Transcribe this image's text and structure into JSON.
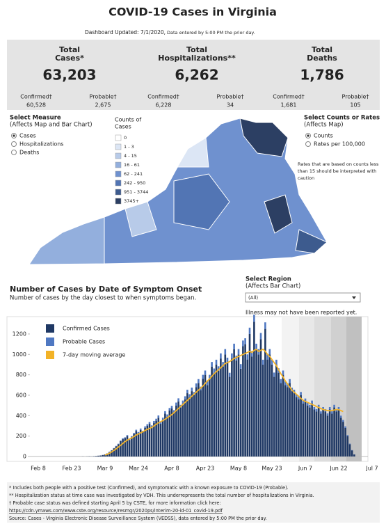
{
  "header": {
    "title": "COVID-19 Cases in Virginia",
    "updated": "Dashboard Updated: 7/1/2020,",
    "updated_note": "Data entered by 5:00 PM the prior day."
  },
  "summary": [
    {
      "label": [
        "Total",
        "Cases*"
      ],
      "value": "63,203",
      "breakdown": [
        {
          "label": "Confirmed†",
          "value": "60,528"
        },
        {
          "label": "Probable†",
          "value": "2,675"
        }
      ]
    },
    {
      "label": [
        "Total",
        "Hospitalizations**"
      ],
      "value": "6,262",
      "breakdown": [
        {
          "label": "Confirmed†",
          "value": "6,228"
        },
        {
          "label": "Probable†",
          "value": "34"
        }
      ]
    },
    {
      "label": [
        "Total",
        "Deaths"
      ],
      "value": "1,786",
      "breakdown": [
        {
          "label": "Confirmed†",
          "value": "1,681"
        },
        {
          "label": "Probable†",
          "value": "105"
        }
      ]
    }
  ],
  "map": {
    "measure_title": "Select Measure",
    "measure_subtitle": "(Affects Map and Bar Chart)",
    "measure_options": [
      "Cases",
      "Hospitalizations",
      "Deaths"
    ],
    "legend_title": [
      "Counts of",
      "Cases"
    ],
    "legend": [
      {
        "label": "0",
        "color": "#ffffff"
      },
      {
        "label": "1 - 3",
        "color": "#dce6f5"
      },
      {
        "label": "4 - 15",
        "color": "#b8cbe9"
      },
      {
        "label": "16 - 61",
        "color": "#93afdd"
      },
      {
        "label": "62 - 241",
        "color": "#6f91cf"
      },
      {
        "label": "242 - 950",
        "color": "#5275b4"
      },
      {
        "label": "951 - 3744",
        "color": "#3d5b8e"
      },
      {
        "label": "3745+",
        "color": "#2c3f63"
      }
    ],
    "rates_title": "Select Counts or Rates",
    "rates_subtitle": "(Affects Map)",
    "rates_options": [
      "Counts",
      "Rates per 100,000"
    ],
    "note": [
      "Rates that are based on counts less",
      "than 15 should be interpreted with",
      "caution"
    ]
  },
  "region": {
    "title": "Select Region",
    "subtitle": "(Affects Bar Chart)",
    "selected": "(All)",
    "note": "Illness may not have been reported yet."
  },
  "chart_data": {
    "type": "bar",
    "stacked": true,
    "title": "Number of Cases by Date of Symptom Onset",
    "subtitle": "Number of cases by the day closest to when symptoms began.",
    "categories": [
      "Feb 8",
      null,
      null,
      null,
      null,
      null,
      null,
      null,
      null,
      null,
      null,
      null,
      null,
      null,
      null,
      "Feb 23",
      null,
      null,
      null,
      null,
      null,
      null,
      null,
      null,
      null,
      null,
      null,
      null,
      null,
      null,
      "Mar 9",
      null,
      null,
      null,
      null,
      null,
      null,
      null,
      null,
      null,
      null,
      null,
      null,
      null,
      null,
      "Mar 24",
      null,
      null,
      null,
      null,
      null,
      null,
      null,
      null,
      null,
      null,
      null,
      null,
      null,
      null,
      "Apr 8",
      null,
      null,
      null,
      null,
      null,
      null,
      null,
      null,
      null,
      null,
      null,
      null,
      null,
      null,
      "Apr 23",
      null,
      null,
      null,
      null,
      null,
      null,
      null,
      null,
      null,
      null,
      null,
      null,
      null,
      null,
      "May 8",
      null,
      null,
      null,
      null,
      null,
      null,
      null,
      null,
      null,
      null,
      null,
      null,
      null,
      null,
      "May 23",
      null,
      null,
      null,
      null,
      null,
      null,
      null,
      null,
      null,
      null,
      null,
      null,
      null,
      null,
      "Jun 7",
      null,
      null,
      null,
      null,
      null,
      null,
      null,
      null,
      null,
      null,
      null,
      null,
      null,
      null,
      "Jun 22",
      null,
      null,
      null,
      null,
      null,
      null,
      null,
      null,
      null,
      null,
      null,
      null,
      null,
      null,
      "Jul 7"
    ],
    "series": [
      {
        "name": "Confirmed Cases",
        "color": "#1f3864",
        "values": [
          0,
          0,
          0,
          0,
          0,
          0,
          0,
          0,
          0,
          0,
          0,
          0,
          0,
          0,
          0,
          0,
          0,
          0,
          0,
          0,
          1,
          0,
          1,
          2,
          1,
          3,
          5,
          8,
          10,
          15,
          20,
          30,
          45,
          60,
          80,
          100,
          120,
          150,
          170,
          180,
          200,
          160,
          190,
          220,
          250,
          230,
          260,
          240,
          280,
          300,
          320,
          290,
          330,
          350,
          380,
          320,
          360,
          420,
          390,
          450,
          470,
          430,
          500,
          540,
          480,
          520,
          560,
          620,
          580,
          640,
          600,
          680,
          720,
          650,
          760,
          800,
          700,
          760,
          880,
          820,
          900,
          840,
          960,
          880,
          1000,
          920,
          780,
          960,
          1050,
          940,
          1000,
          860,
          1080,
          1100,
          950,
          1200,
          980,
          1320,
          1050,
          1000,
          1150,
          900,
          1250,
          950,
          1000,
          900,
          780,
          900,
          820,
          720,
          800,
          700,
          680,
          720,
          640,
          620,
          580,
          560,
          600,
          520,
          540,
          500,
          480,
          520,
          460,
          440,
          480,
          420,
          460,
          440,
          400,
          460,
          420,
          480,
          440,
          460,
          380,
          340,
          280,
          200,
          120,
          60,
          20,
          0,
          0,
          0,
          0,
          0,
          0,
          0,
          0
        ]
      },
      {
        "name": "Probable Cases",
        "color": "#4f78c2",
        "values": [
          0,
          0,
          0,
          0,
          0,
          0,
          0,
          0,
          0,
          0,
          0,
          0,
          0,
          0,
          0,
          0,
          0,
          0,
          0,
          0,
          0,
          0,
          0,
          0,
          0,
          0,
          0,
          0,
          0,
          0,
          0,
          0,
          1,
          2,
          3,
          4,
          5,
          6,
          8,
          8,
          10,
          8,
          10,
          12,
          12,
          10,
          14,
          12,
          15,
          16,
          18,
          15,
          18,
          20,
          22,
          18,
          20,
          24,
          22,
          25,
          26,
          24,
          28,
          30,
          26,
          28,
          30,
          34,
          30,
          35,
          32,
          36,
          38,
          34,
          40,
          42,
          36,
          40,
          46,
          42,
          48,
          44,
          50,
          46,
          52,
          48,
          40,
          50,
          55,
          48,
          52,
          45,
          56,
          58,
          50,
          62,
          52,
          68,
          55,
          52,
          60,
          48,
          64,
          50,
          52,
          48,
          42,
          48,
          44,
          38,
          42,
          38,
          36,
          38,
          34,
          34,
          30,
          30,
          32,
          28,
          28,
          26,
          26,
          28,
          24,
          24,
          26,
          22,
          24,
          24,
          22,
          24,
          22,
          26,
          24,
          24,
          20,
          18,
          15,
          10,
          6,
          3,
          1,
          0,
          0,
          0,
          0,
          0,
          0,
          0,
          0
        ]
      },
      {
        "name": "7-day moving average",
        "color": "#f2b227",
        "type": "line",
        "values": [
          null,
          null,
          null,
          null,
          null,
          null,
          null,
          null,
          null,
          null,
          null,
          null,
          null,
          null,
          null,
          null,
          null,
          null,
          null,
          null,
          null,
          null,
          null,
          null,
          null,
          null,
          null,
          null,
          null,
          null,
          15,
          22,
          32,
          45,
          60,
          75,
          92,
          110,
          128,
          145,
          160,
          172,
          182,
          195,
          210,
          220,
          232,
          242,
          254,
          265,
          275,
          285,
          300,
          315,
          330,
          340,
          352,
          365,
          380,
          395,
          410,
          430,
          450,
          470,
          490,
          510,
          530,
          550,
          570,
          590,
          610,
          630,
          650,
          670,
          690,
          715,
          740,
          760,
          785,
          810,
          830,
          850,
          870,
          890,
          910,
          920,
          930,
          945,
          960,
          970,
          980,
          990,
          1000,
          1010,
          1020,
          1030,
          1020,
          1040,
          1050,
          1030,
          1040,
          1050,
          1030,
          1000,
          980,
          950,
          920,
          890,
          850,
          810,
          780,
          740,
          710,
          680,
          650,
          630,
          610,
          590,
          570,
          550,
          540,
          530,
          520,
          510,
          500,
          490,
          480,
          470,
          460,
          455,
          450,
          448,
          450,
          455,
          460,
          458,
          450,
          440,
          null,
          null,
          null,
          null,
          null,
          null,
          null,
          null,
          null,
          null,
          null,
          null,
          null
        ]
      }
    ],
    "ylim": [
      0,
      1370
    ],
    "yticks": [
      0,
      200,
      400,
      600,
      800,
      1000,
      1200
    ]
  },
  "footnotes": [
    "* Includes both people with a positive test (Confirmed), and symptomatic with a known exposure to COVID-19 (Probable).",
    "** Hospitalization status at time case was investigated by VDH. This underrepresents the total number of hospitalizations in Virginia.",
    "† Probable case status was defined starting April 5 by CSTE, for more information click here:",
    "https://cdn.ymaws.com/www.cste.org/resource/resmgr/2020ps/interim-20-id-01_covid-19.pdf",
    "Source:  Cases - Virginia Electronic Disease Surveillance System (VEDSS), data entered by 5:00 PM the prior day."
  ]
}
